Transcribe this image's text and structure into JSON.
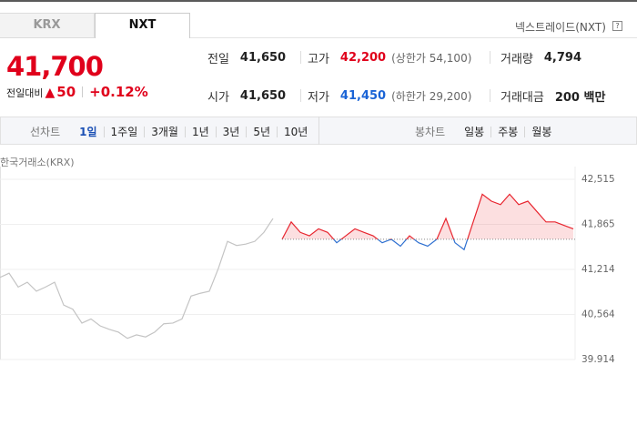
{
  "tabs": [
    "KRX",
    "NXT"
  ],
  "market_label": "넥스트레이드(NXT)",
  "help_icon": "?",
  "price": "41,700",
  "change": {
    "label": "전일대비",
    "arrow": "▲",
    "amount": "50",
    "percent": "+0.12%"
  },
  "stats": [
    [
      {
        "label": "전일",
        "value": "41,650"
      },
      {
        "label": "고가",
        "value": "42,200",
        "note": "(상한가 54,100)"
      },
      {
        "label": "거래량",
        "value": "4,794"
      }
    ],
    [
      {
        "label": "시가",
        "value": "41,650"
      },
      {
        "label": "저가",
        "value": "41,450",
        "note": "(하한가 29,200)"
      },
      {
        "label": "거래대금",
        "value": "200 백만"
      }
    ]
  ],
  "line_periods": {
    "label": "선차트",
    "items": [
      "1일",
      "1주일",
      "3개월",
      "1년",
      "3년",
      "5년",
      "10년"
    ]
  },
  "candle_periods": {
    "label": "봉차트",
    "items": [
      "일봉",
      "주봉",
      "월봉"
    ]
  },
  "chart_data": {
    "type": "line",
    "subtitle": "한국거래소(KRX)",
    "ylim": [
      39914,
      42673
    ],
    "yticks": [
      {
        "value": 39914,
        "label": "39,914"
      },
      {
        "value": 40564,
        "label": "40,564"
      },
      {
        "value": 41214,
        "label": "41,214"
      },
      {
        "value": 41865,
        "label": "41,865"
      },
      {
        "value": 42515,
        "label": "42,515"
      }
    ],
    "grid": true,
    "reference_line": 41650,
    "series": [
      {
        "color": "#c4c4c4",
        "values": [
          41100,
          41160,
          40960,
          41030,
          40900,
          40960,
          41030,
          40700,
          40640,
          40440,
          40500,
          40400,
          40350,
          40310,
          40220,
          40270,
          40240,
          40310,
          40430,
          40440,
          40500,
          40830,
          40870,
          40900,
          41230,
          41620,
          41560,
          41580,
          41620,
          41750,
          41950,
          null,
          null,
          null,
          null,
          null,
          null,
          null,
          null,
          null,
          null,
          null,
          null,
          null,
          null,
          null,
          null,
          null,
          null,
          null,
          null,
          null,
          null,
          null,
          null,
          null,
          null,
          null,
          null,
          null,
          null,
          null,
          null,
          null
        ]
      },
      {
        "color": "#e8252f",
        "color_below": "#2d6fd0",
        "values": [
          null,
          null,
          null,
          null,
          null,
          null,
          null,
          null,
          null,
          null,
          null,
          null,
          null,
          null,
          null,
          null,
          null,
          null,
          null,
          null,
          null,
          null,
          null,
          null,
          null,
          null,
          null,
          null,
          null,
          null,
          null,
          41650,
          41900,
          41750,
          41700,
          41800,
          41750,
          41600,
          41700,
          41800,
          41750,
          41700,
          41600,
          41650,
          41550,
          41700,
          41600,
          41550,
          41650,
          41950,
          41600,
          41500,
          41900,
          42300,
          42200,
          42150,
          42300,
          42150,
          42200,
          42050,
          41900,
          41900,
          41850,
          41800
        ]
      }
    ]
  }
}
